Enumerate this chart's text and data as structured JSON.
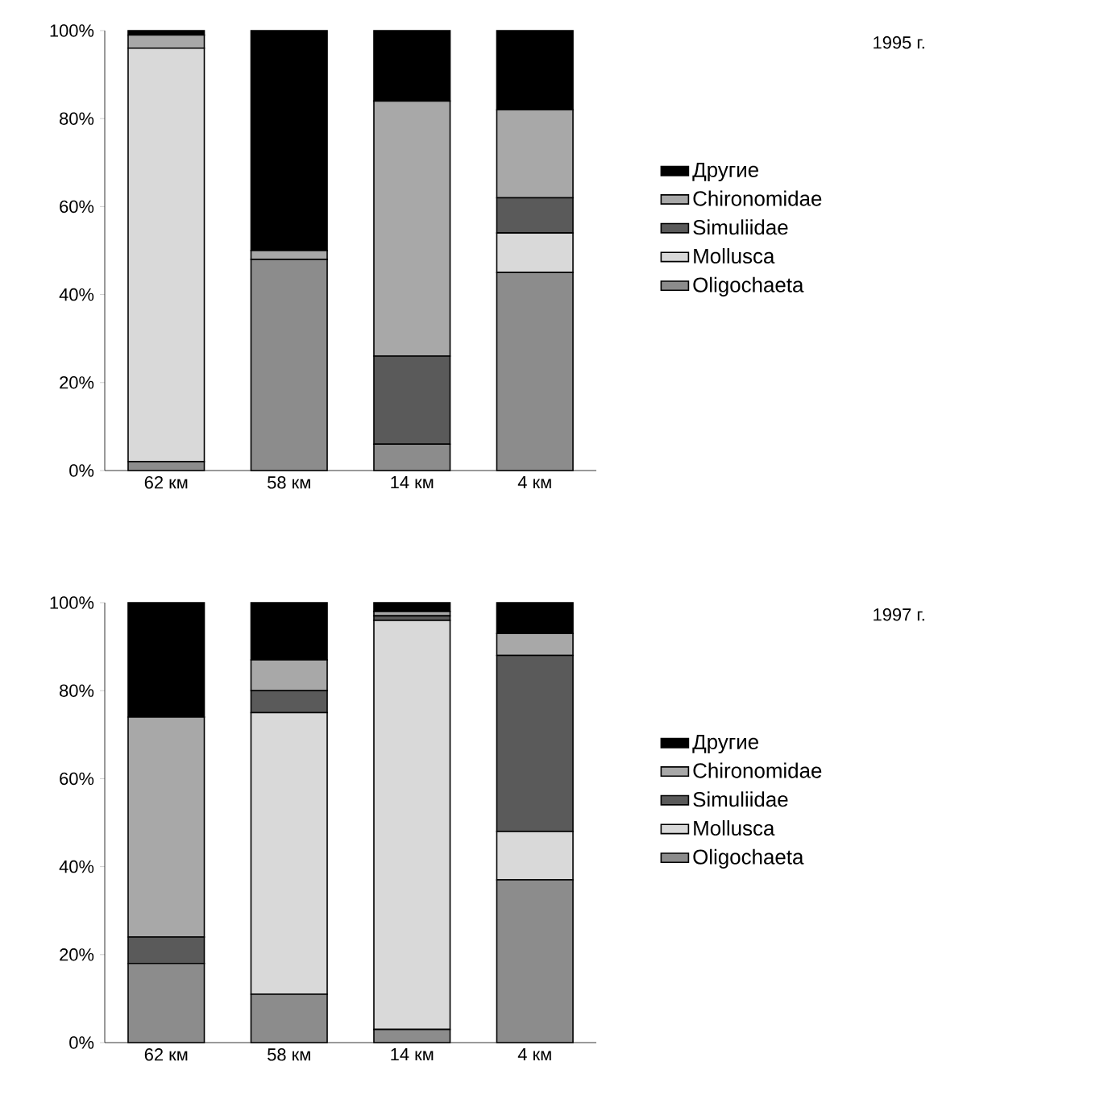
{
  "chart_data": [
    {
      "type": "bar",
      "stacked": true,
      "categories": [
        "62 км",
        "58 км",
        "14 км",
        "4 км"
      ],
      "ylim": [
        0,
        100
      ],
      "yticks": [
        {
          "value": 0,
          "label": "0%"
        },
        {
          "value": 20,
          "label": "20%"
        },
        {
          "value": 40,
          "label": "40%"
        },
        {
          "value": 60,
          "label": "60%"
        },
        {
          "value": 80,
          "label": "80%"
        },
        {
          "value": 100,
          "label": "100%"
        }
      ],
      "legend": "right",
      "annotations": [
        "1995 г."
      ],
      "series": [
        {
          "name": "Oligochaeta",
          "color": "#8c8c8c",
          "values": [
            2,
            48,
            6,
            45
          ]
        },
        {
          "name": "Mollusca",
          "color": "#d9d9d9",
          "values": [
            94,
            0,
            0,
            9
          ]
        },
        {
          "name": "Simuliidae",
          "color": "#5a5a5a",
          "values": [
            0,
            0,
            20,
            8
          ]
        },
        {
          "name": "Chironomidae",
          "color": "#a8a8a8",
          "values": [
            3,
            2,
            58,
            20
          ]
        },
        {
          "name": "Другие",
          "color": "#000000",
          "values": [
            1,
            50,
            16,
            18
          ]
        }
      ]
    },
    {
      "type": "bar",
      "stacked": true,
      "categories": [
        "62 км",
        "58 км",
        "14 км",
        "4 км"
      ],
      "ylim": [
        0,
        100
      ],
      "yticks": [
        {
          "value": 0,
          "label": "0%"
        },
        {
          "value": 20,
          "label": "20%"
        },
        {
          "value": 40,
          "label": "40%"
        },
        {
          "value": 60,
          "label": "60%"
        },
        {
          "value": 80,
          "label": "80%"
        },
        {
          "value": 100,
          "label": "100%"
        }
      ],
      "legend": "right",
      "annotations": [
        "1997 г."
      ],
      "series": [
        {
          "name": "Oligochaeta",
          "color": "#8c8c8c",
          "values": [
            18,
            11,
            3,
            37
          ]
        },
        {
          "name": "Mollusca",
          "color": "#d9d9d9",
          "values": [
            0,
            64,
            93,
            11
          ]
        },
        {
          "name": "Simuliidae",
          "color": "#5a5a5a",
          "values": [
            6,
            5,
            1,
            40
          ]
        },
        {
          "name": "Chironomidae",
          "color": "#a8a8a8",
          "values": [
            50,
            7,
            1,
            5
          ]
        },
        {
          "name": "Другие",
          "color": "#000000",
          "values": [
            26,
            13,
            2,
            7
          ]
        }
      ]
    }
  ]
}
